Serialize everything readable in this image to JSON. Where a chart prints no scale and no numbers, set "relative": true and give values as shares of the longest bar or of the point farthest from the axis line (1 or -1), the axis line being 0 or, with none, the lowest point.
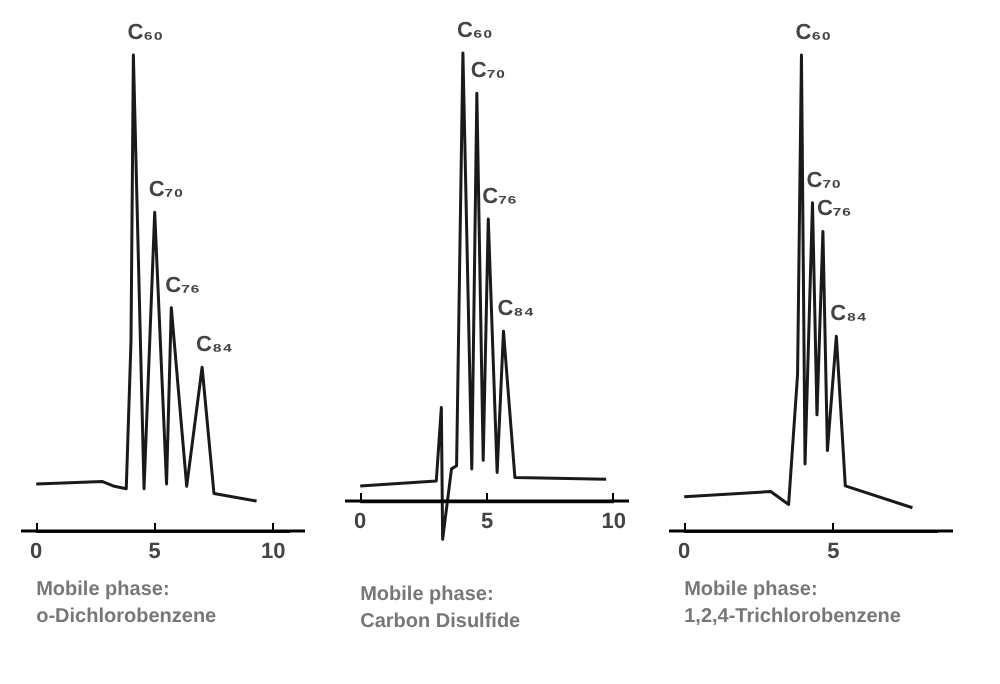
{
  "chart_data": [
    {
      "type": "line",
      "relative": true,
      "xlabel": "Mobile phase:\no-Dichlorobenzene",
      "xlim": [
        0,
        10.7
      ],
      "xticks": [
        0,
        5,
        10
      ],
      "tick_labels": "x",
      "grid": false,
      "series": [
        {
          "color": "#1a1a1a",
          "x": [
            0,
            2.8,
            3.3,
            3.8,
            4.0,
            4.1,
            4.55,
            5.0,
            5.5,
            5.7,
            6.35,
            7.0,
            7.5,
            9.3
          ],
          "values": [
            0.1,
            0.105,
            0.095,
            0.09,
            0.4,
            1.0,
            0.09,
            0.67,
            0.1,
            0.47,
            0.095,
            0.345,
            0.08,
            0.064
          ]
        }
      ],
      "annotations": [
        {
          "text": "C₆₀",
          "x": 4.1,
          "y": 1.0
        },
        {
          "text": "C₇₀",
          "x": 5.0,
          "y": 0.67
        },
        {
          "text": "C₇₆",
          "x": 5.7,
          "y": 0.47
        },
        {
          "text": "C₈₄",
          "x": 7.0,
          "y": 0.345
        }
      ]
    },
    {
      "type": "line",
      "relative": true,
      "xlabel": "Mobile phase:\nCarbon Disulfide",
      "xlim": [
        0,
        10
      ],
      "xticks": [
        0,
        5,
        10
      ],
      "tick_labels": "x",
      "grid": false,
      "series": [
        {
          "color": "#1a1a1a",
          "x": [
            0,
            3.0,
            3.2,
            3.25,
            3.6,
            3.8,
            4.05,
            4.4,
            4.6,
            4.85,
            5.05,
            5.4,
            5.65,
            6.1,
            9.7
          ],
          "values": [
            0.035,
            0.046,
            0.21,
            -0.084,
            0.073,
            0.08,
            1.0,
            0.073,
            0.91,
            0.092,
            0.63,
            0.065,
            0.38,
            0.054,
            0.05
          ]
        }
      ],
      "annotations": [
        {
          "text": "C₆₀",
          "x": 4.05,
          "y": 1.0
        },
        {
          "text": "C₇₀",
          "x": 4.6,
          "y": 0.91
        },
        {
          "text": "C₇₆",
          "x": 5.05,
          "y": 0.63
        },
        {
          "text": "C₈₄",
          "x": 5.65,
          "y": 0.38
        }
      ]
    },
    {
      "type": "line",
      "relative": true,
      "xlabel": "Mobile phase:\n1,2,4-Trichlorobenzene",
      "xlim": [
        0,
        8.5
      ],
      "xticks": [
        0,
        5
      ],
      "tick_labels": "x",
      "grid": false,
      "series": [
        {
          "color": "#1a1a1a",
          "x": [
            0,
            2.9,
            3.5,
            3.8,
            3.93,
            4.05,
            4.3,
            4.45,
            4.65,
            4.8,
            5.1,
            5.4,
            7.65
          ],
          "values": [
            0.073,
            0.084,
            0.057,
            0.33,
            1.0,
            0.142,
            0.69,
            0.245,
            0.63,
            0.17,
            0.41,
            0.096,
            0.05
          ]
        }
      ],
      "annotations": [
        {
          "text": "C₆₀",
          "x": 3.93,
          "y": 1.0
        },
        {
          "text": "C₇₀",
          "x": 4.3,
          "y": 0.69
        },
        {
          "text": "C₇₆",
          "x": 4.65,
          "y": 0.63
        },
        {
          "text": "C₈₄",
          "x": 5.1,
          "y": 0.41
        }
      ]
    }
  ]
}
